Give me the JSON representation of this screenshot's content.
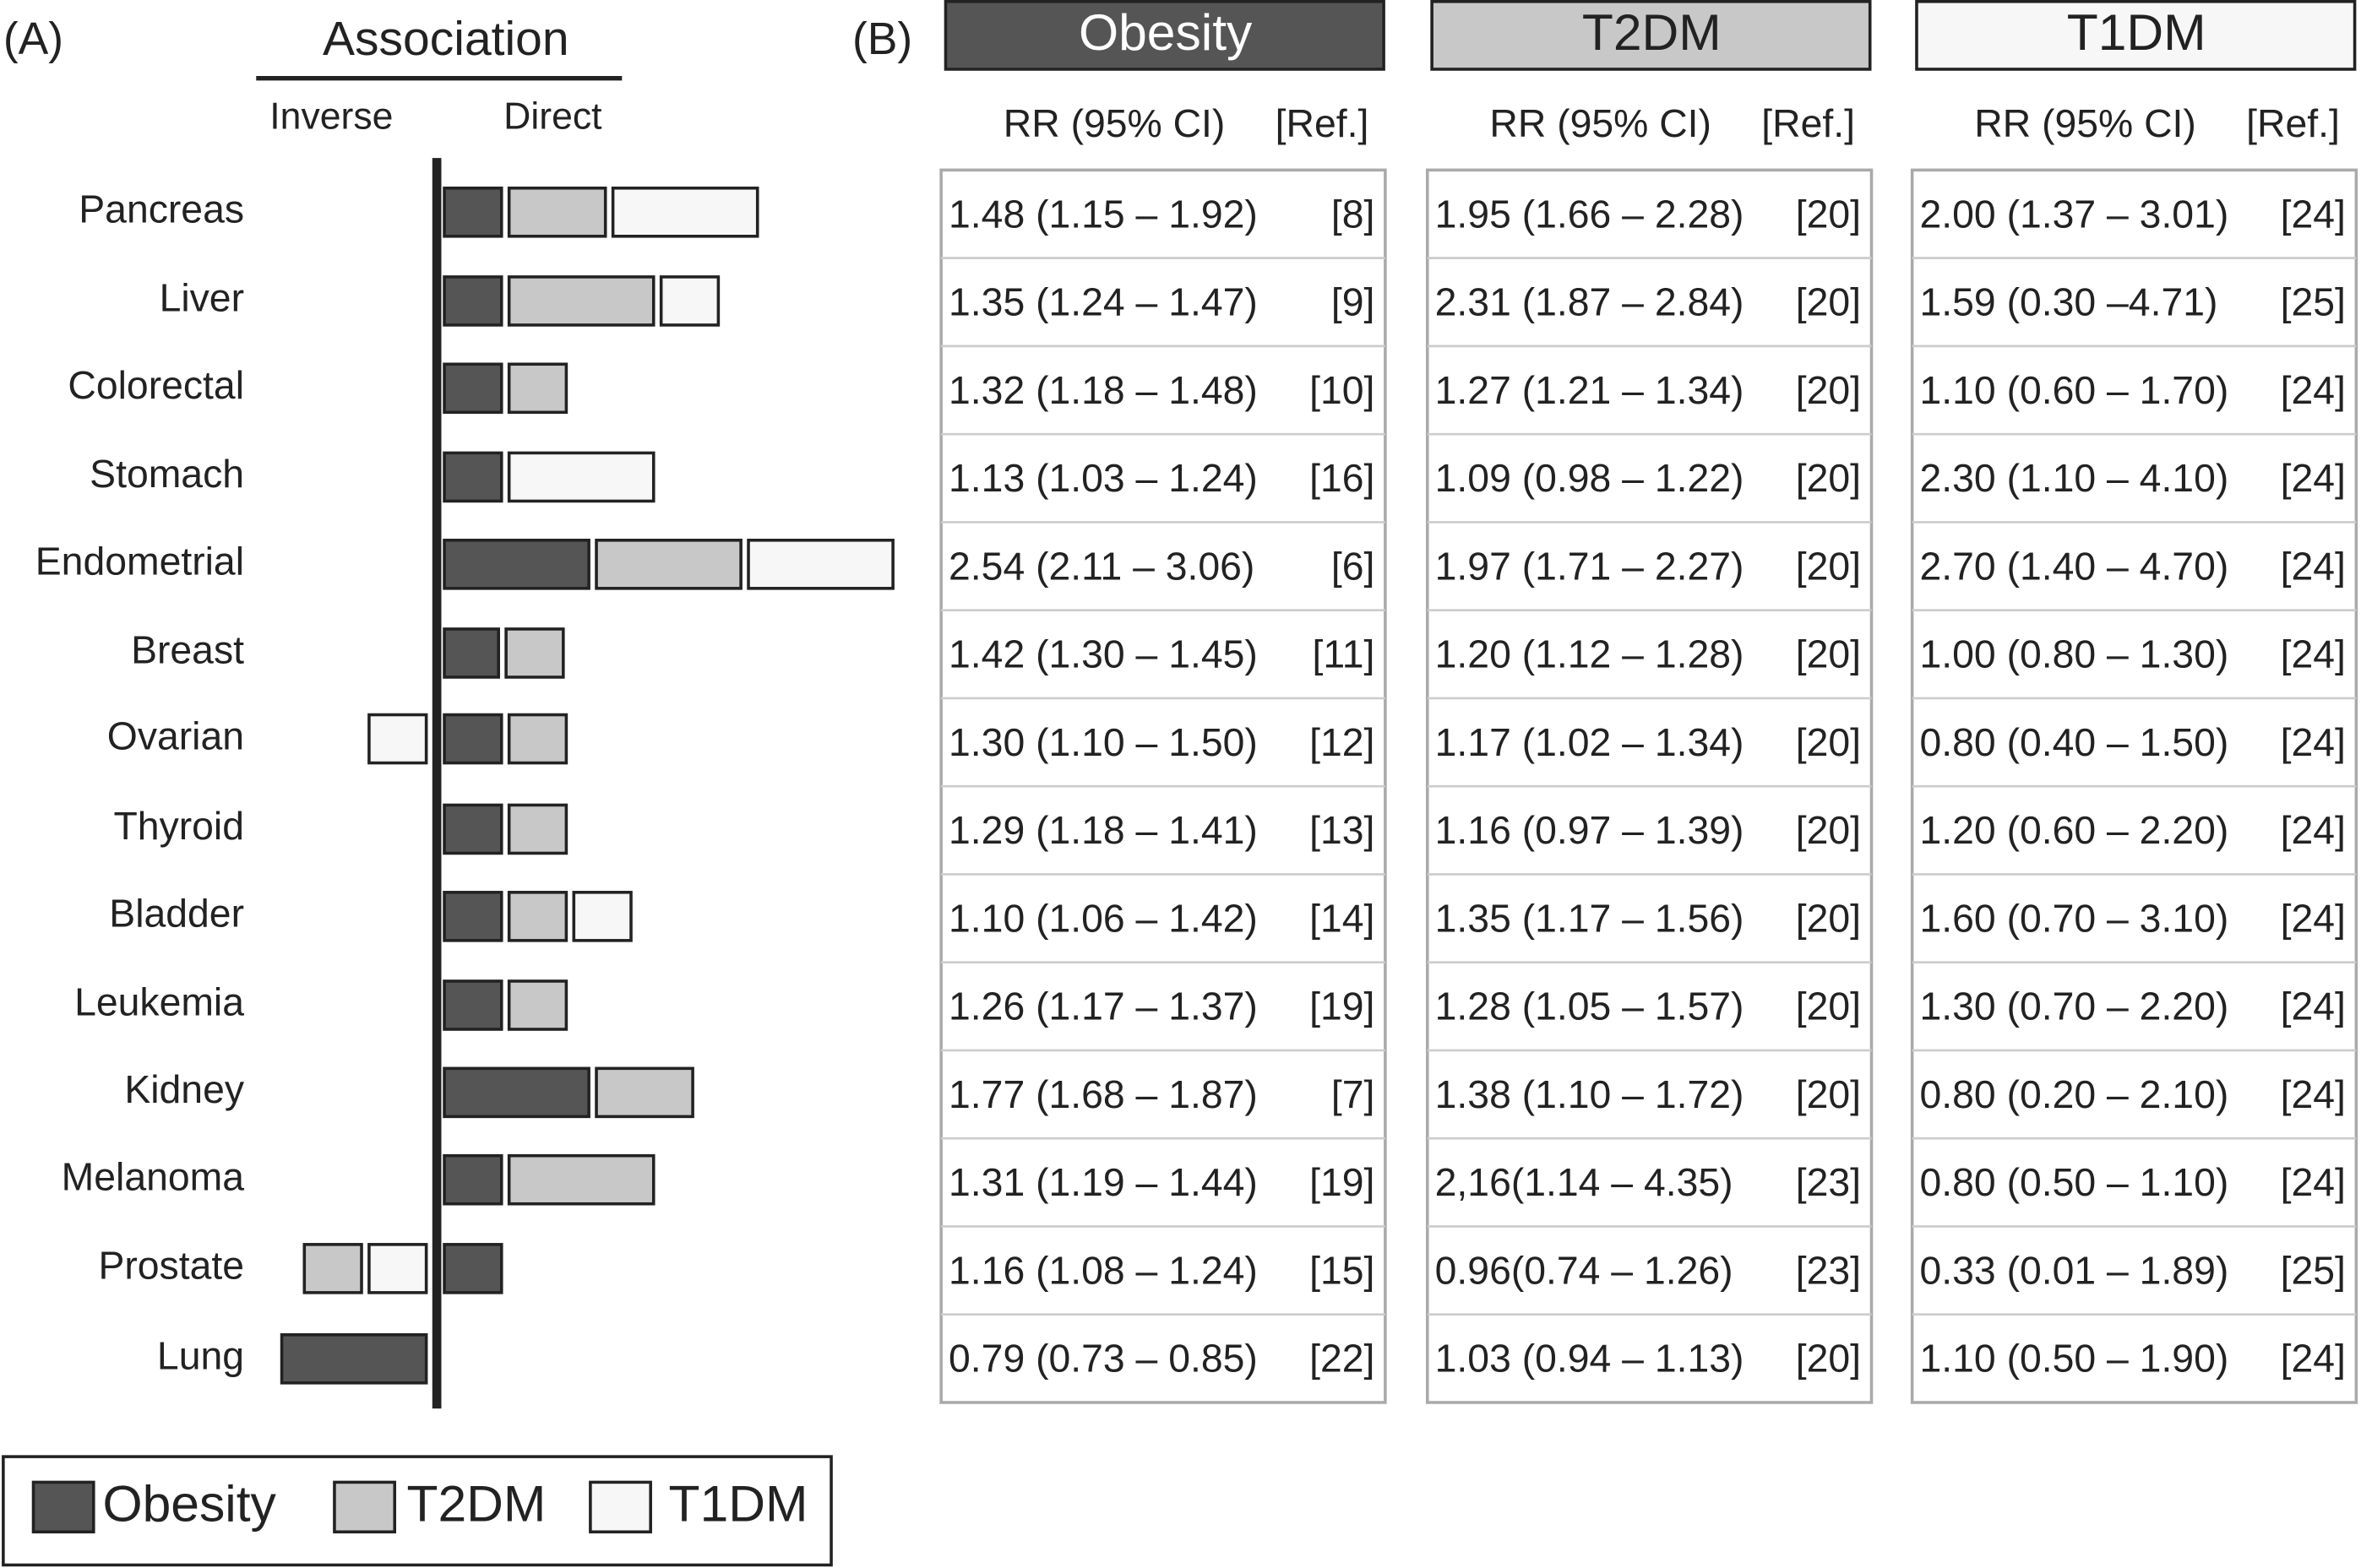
{
  "panel_a": {
    "label": "(A)",
    "heading": "Association",
    "inverse": "Inverse",
    "direct": "Direct",
    "rows": [
      "Pancreas",
      "Liver",
      "Colorectal",
      "Stomach",
      "Endometrial",
      "Breast",
      "Ovarian",
      "Thyroid",
      "Bladder",
      "Leukemia",
      "Kidney",
      "Melanoma",
      "Prostate",
      "Lung"
    ],
    "legend": [
      "Obesity",
      "T2DM",
      "T1DM"
    ]
  },
  "panel_b": {
    "label": "(B)",
    "groups": [
      {
        "title": "Obesity",
        "rr_header": "RR (95% CI)",
        "ref_header": "[Ref.]",
        "rows": [
          [
            "1.48 (1.15 – 1.92)",
            "[8]"
          ],
          [
            "1.35 (1.24 – 1.47)",
            "[9]"
          ],
          [
            "1.32 (1.18 – 1.48)",
            "[10]"
          ],
          [
            "1.13 (1.03 – 1.24)",
            "[16]"
          ],
          [
            "2.54 (2.11 – 3.06)",
            "[6]"
          ],
          [
            "1.42 (1.30 – 1.45)",
            "[11]"
          ],
          [
            "1.30 (1.10 – 1.50)",
            "[12]"
          ],
          [
            "1.29 (1.18 – 1.41)",
            "[13]"
          ],
          [
            "1.10 (1.06 – 1.42)",
            "[14]"
          ],
          [
            "1.26 (1.17 – 1.37)",
            "[19]"
          ],
          [
            "1.77 (1.68 – 1.87)",
            "[7]"
          ],
          [
            "1.31 (1.19 – 1.44)",
            "[19]"
          ],
          [
            "1.16 (1.08 – 1.24)",
            "[15]"
          ],
          [
            "0.79 (0.73 – 0.85)",
            "[22]"
          ]
        ]
      },
      {
        "title": "T2DM",
        "rr_header": "RR (95% CI)",
        "ref_header": "[Ref.]",
        "rows": [
          [
            "1.95 (1.66 – 2.28)",
            "[20]"
          ],
          [
            "2.31 (1.87 – 2.84)",
            "[20]"
          ],
          [
            "1.27 (1.21 – 1.34)",
            "[20]"
          ],
          [
            "1.09 (0.98 – 1.22)",
            "[20]"
          ],
          [
            "1.97 (1.71 – 2.27)",
            "[20]"
          ],
          [
            "1.20 (1.12 – 1.28)",
            "[20]"
          ],
          [
            "1.17 (1.02 – 1.34)",
            "[20]"
          ],
          [
            "1.16 (0.97 – 1.39)",
            "[20]"
          ],
          [
            "1.35 (1.17 – 1.56)",
            "[20]"
          ],
          [
            "1.28 (1.05 – 1.57)",
            "[20]"
          ],
          [
            "1.38 (1.10 – 1.72)",
            "[20]"
          ],
          [
            "2,16(1.14 – 4.35)",
            "[23]"
          ],
          [
            "0.96(0.74 – 1.26)",
            "[23]"
          ],
          [
            "1.03 (0.94 – 1.13)",
            "[20]"
          ]
        ]
      },
      {
        "title": "T1DM",
        "rr_header": "RR (95% CI)",
        "ref_header": "[Ref.]",
        "rows": [
          [
            "2.00 (1.37 – 3.01)",
            "[24]"
          ],
          [
            "1.59 (0.30 –4.71)",
            "[25]"
          ],
          [
            "1.10 (0.60 – 1.70)",
            "[24]"
          ],
          [
            "2.30 (1.10 – 4.10)",
            "[24]"
          ],
          [
            "2.70 (1.40 – 4.70)",
            "[24]"
          ],
          [
            "1.00 (0.80 – 1.30)",
            "[24]"
          ],
          [
            "0.80 (0.40 – 1.50)",
            "[24]"
          ],
          [
            "1.20 (0.60 – 2.20)",
            "[24]"
          ],
          [
            "1.60 (0.70 – 3.10)",
            "[24]"
          ],
          [
            "1.30 (0.70 – 2.20)",
            "[24]"
          ],
          [
            "0.80 (0.20 – 2.10)",
            "[24]"
          ],
          [
            "0.80 (0.50 – 1.10)",
            "[24]"
          ],
          [
            "0.33 (0.01 – 1.89)",
            "[25]"
          ],
          [
            "1.10 (0.50 – 1.90)",
            "[24]"
          ]
        ]
      }
    ]
  }
}
